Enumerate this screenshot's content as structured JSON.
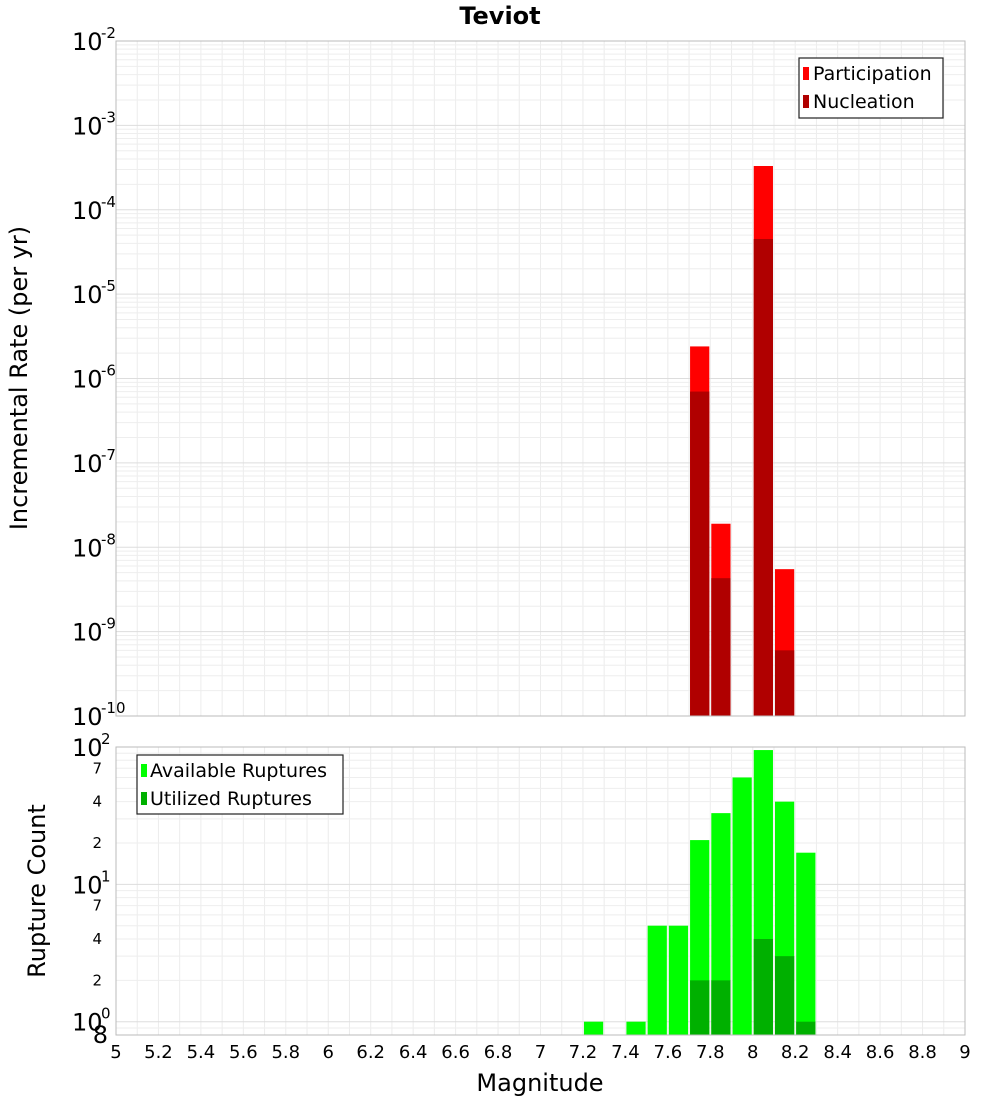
{
  "chart_data": [
    {
      "type": "bar",
      "title": "Teviot",
      "ylabel": "Incremental Rate (per yr)",
      "y_scale": "log",
      "ylim": [
        1e-10,
        0.01
      ],
      "xlim": [
        5,
        9
      ],
      "y_tick_bases": [
        "10",
        "10",
        "10",
        "10",
        "10",
        "10",
        "10",
        "10",
        "10"
      ],
      "y_tick_exponents": [
        "-10",
        "-9",
        "-8",
        "-7",
        "-6",
        "-5",
        "-4",
        "-3",
        "-2"
      ],
      "grid": true,
      "legend": {
        "placement": "top-right",
        "entries": [
          "Participation",
          "Nucleation"
        ]
      },
      "x": [
        7.75,
        7.85,
        8.05,
        8.15
      ],
      "series": [
        {
          "name": "Participation",
          "color": "#ff0000",
          "values": [
            2.4e-06,
            1.9e-08,
            0.00033,
            5.5e-09
          ]
        },
        {
          "name": "Nucleation",
          "color": "#b00000",
          "values": [
            7e-07,
            4.3e-09,
            4.5e-05,
            6e-10
          ]
        }
      ]
    },
    {
      "type": "bar",
      "ylabel": "Rupture Count",
      "xlabel": "Magnitude",
      "y_scale": "log",
      "ylim": [
        0.8,
        100
      ],
      "xlim": [
        5,
        9
      ],
      "y_tick_bases": [
        "10",
        "10",
        "10"
      ],
      "y_tick_exponents": [
        "0",
        "1",
        "2"
      ],
      "y_minor_labels": [
        "8",
        "2",
        "4",
        "7",
        "2",
        "4",
        "7"
      ],
      "x_tick_labels": [
        "5",
        "5.2",
        "5.4",
        "5.6",
        "5.8",
        "6",
        "6.2",
        "6.4",
        "6.6",
        "6.8",
        "7",
        "7.2",
        "7.4",
        "7.6",
        "7.8",
        "8",
        "8.2",
        "8.4",
        "8.6",
        "8.8",
        "9"
      ],
      "grid": true,
      "legend": {
        "placement": "top-left",
        "entries": [
          "Available Ruptures",
          "Utilized Ruptures"
        ]
      },
      "x": [
        7.25,
        7.45,
        7.55,
        7.65,
        7.75,
        7.85,
        7.95,
        8.05,
        8.15,
        8.25
      ],
      "series": [
        {
          "name": "Available Ruptures",
          "color": "#00ff00",
          "values": [
            1,
            1,
            5,
            5,
            21,
            33,
            60,
            95,
            40,
            17
          ]
        },
        {
          "name": "Utilized Ruptures",
          "color": "#00b000",
          "values": [
            0,
            0,
            0,
            0,
            2,
            2,
            0,
            4,
            3,
            1
          ]
        }
      ]
    }
  ]
}
